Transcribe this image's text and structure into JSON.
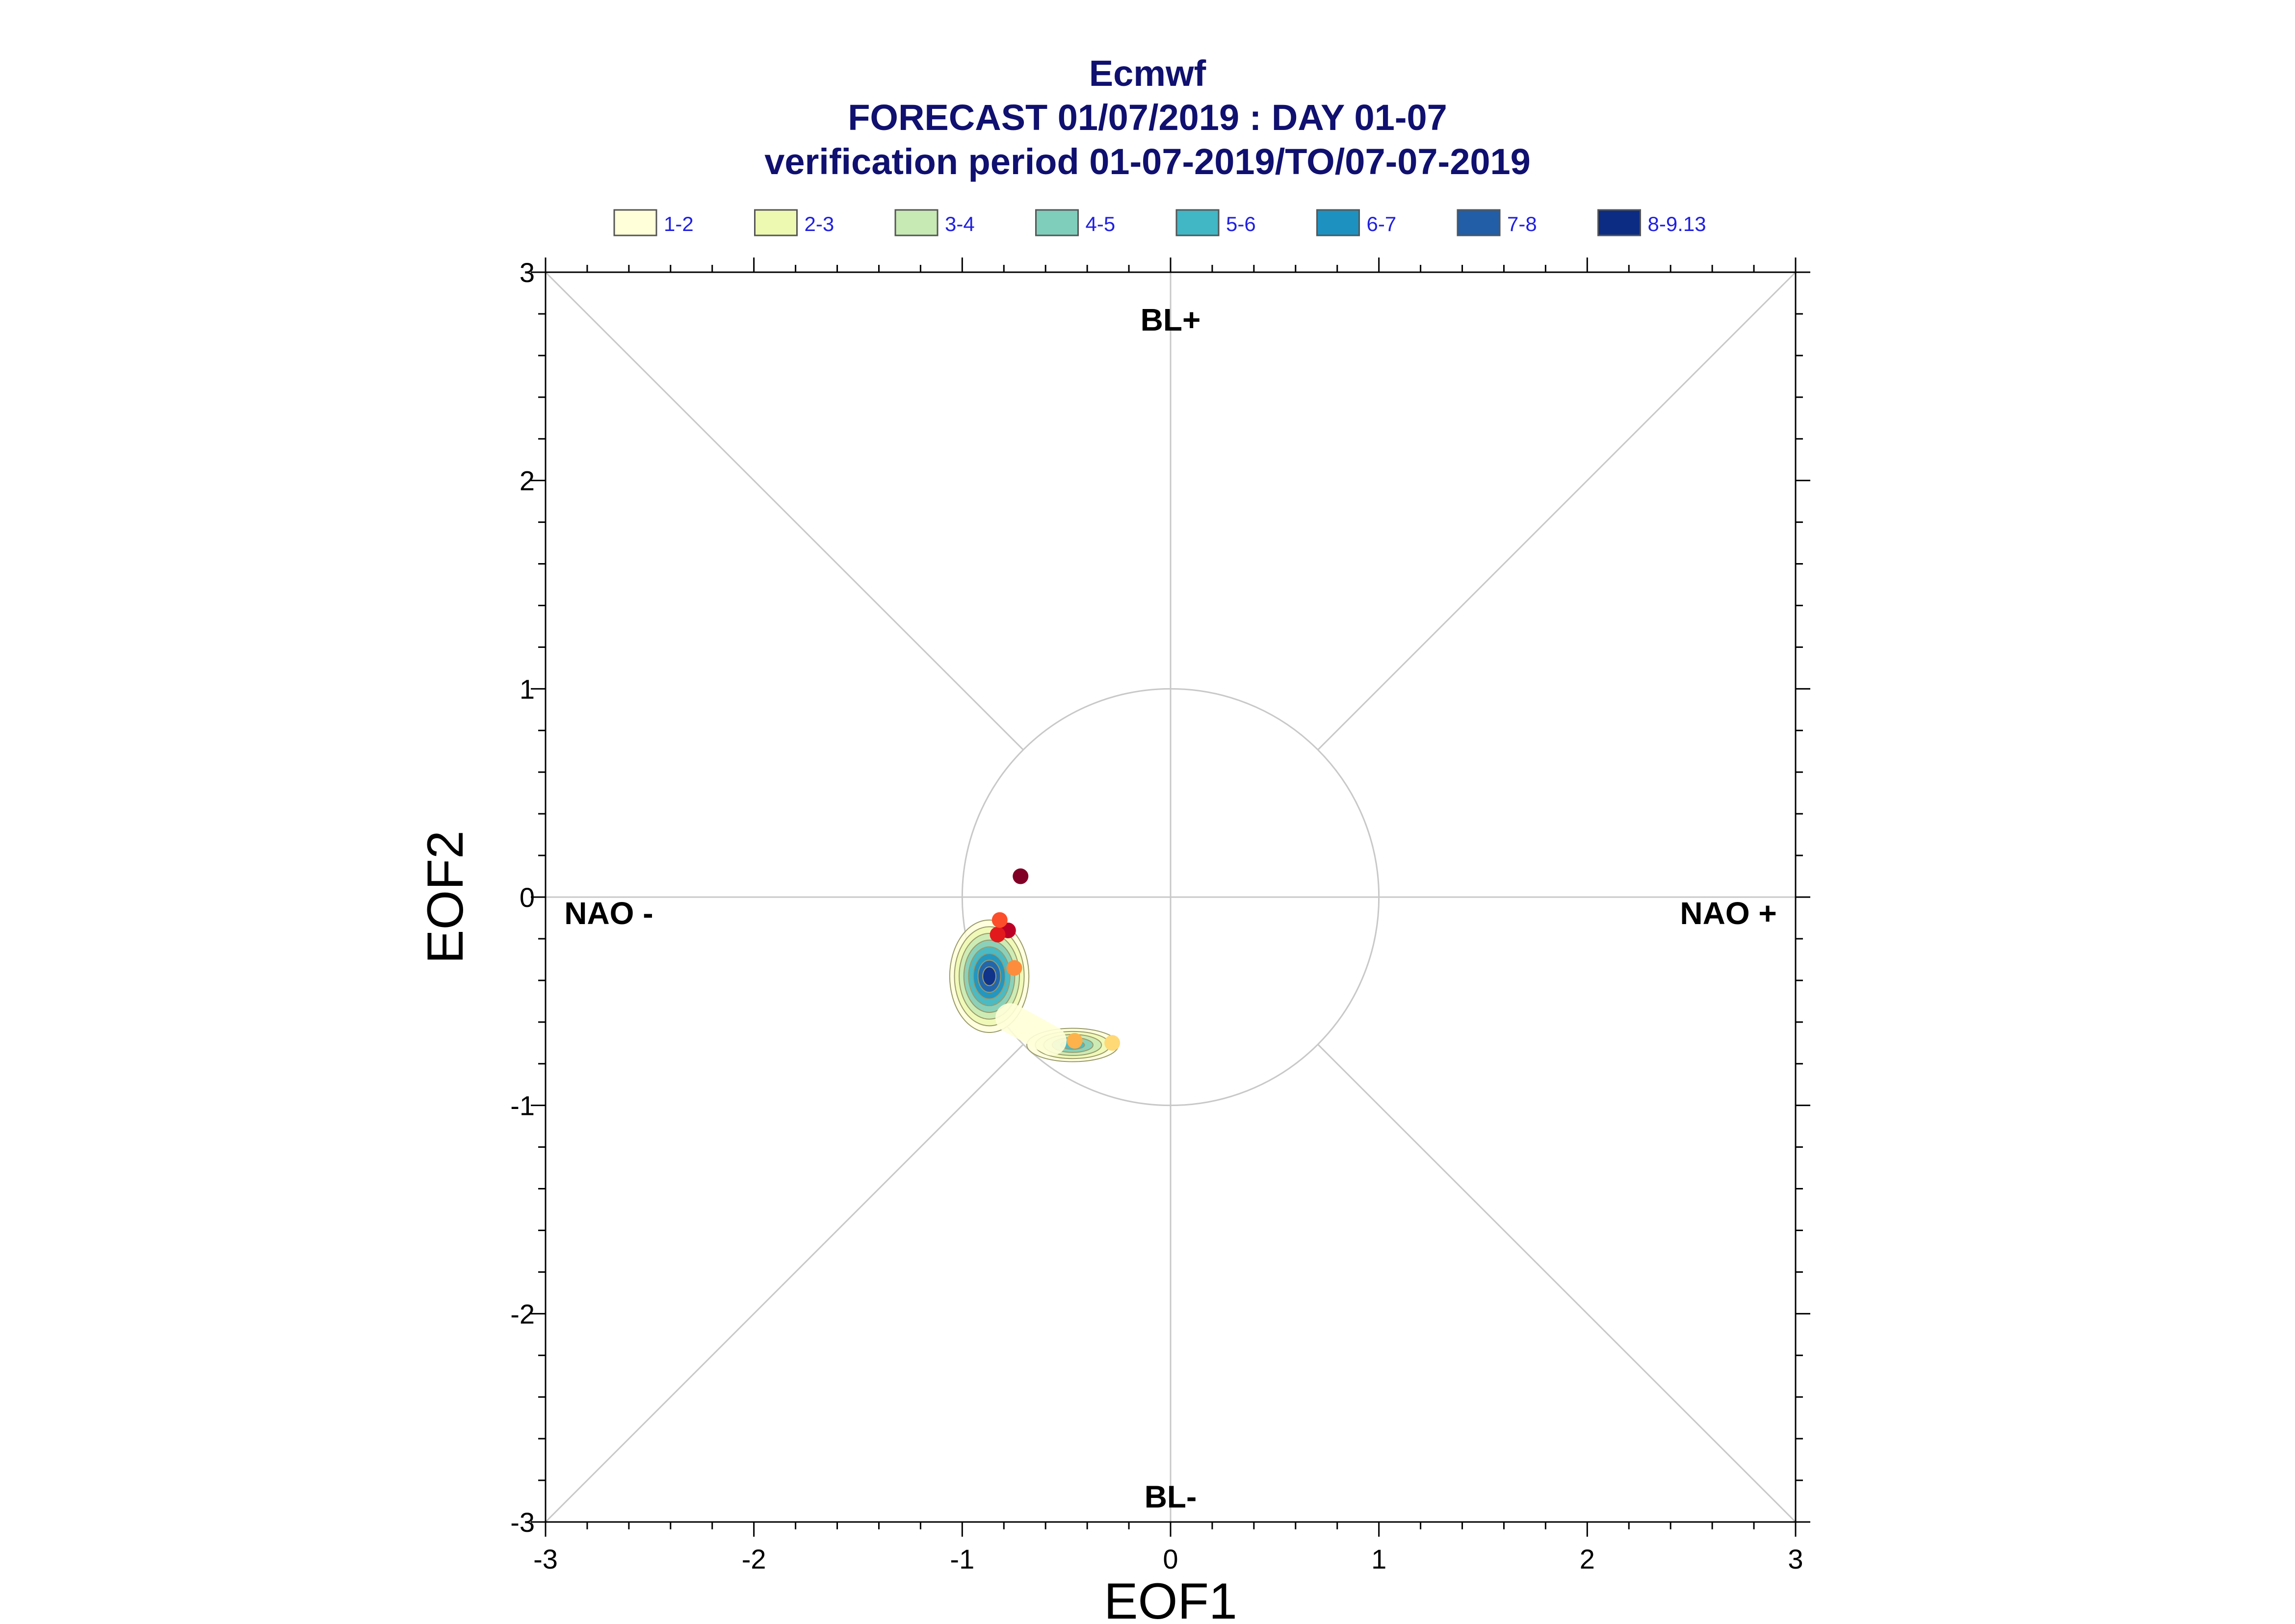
{
  "chart_data": {
    "type": "scatter",
    "title": [
      "Ecmwf",
      "FORECAST 01/07/2019 : DAY 01-07",
      "verification period 01-07-2019/TO/07-07-2019"
    ],
    "xlabel": "EOF1",
    "ylabel": "EOF2",
    "xlim": [
      -3,
      3
    ],
    "ylim": [
      -3,
      3
    ],
    "xticks": [
      "-3",
      "-2",
      "-1",
      "0",
      "1",
      "2",
      "3"
    ],
    "yticks": [
      "-3",
      "-2",
      "-1",
      "0",
      "1",
      "2",
      "3"
    ],
    "regime_labels": {
      "top": "BL+",
      "bottom": "BL-",
      "left": "NAO -",
      "right": "NAO +"
    },
    "unit_circle_radius": 1,
    "legend": [
      {
        "label": "1-2",
        "color": "#ffffd9"
      },
      {
        "label": "2-3",
        "color": "#edf8b1"
      },
      {
        "label": "3-4",
        "color": "#c7e9b4"
      },
      {
        "label": "4-5",
        "color": "#7fcdbb"
      },
      {
        "label": "5-6",
        "color": "#41b6c4"
      },
      {
        "label": "6-7",
        "color": "#1d91c0"
      },
      {
        "label": "7-8",
        "color": "#225ea8"
      },
      {
        "label": "8-9.13",
        "color": "#0c2c84"
      }
    ],
    "density_clusters": [
      {
        "cx": -0.87,
        "cy": -0.38,
        "rx": 0.19,
        "ry": 0.27,
        "levels": 8
      },
      {
        "cx": -0.47,
        "cy": -0.71,
        "rx": 0.22,
        "ry": 0.08,
        "levels": 5
      }
    ],
    "points": [
      {
        "day": 1,
        "x": -0.72,
        "y": 0.1,
        "color": "#800026"
      },
      {
        "day": 2,
        "x": -0.78,
        "y": -0.16,
        "color": "#bd0026"
      },
      {
        "day": 3,
        "x": -0.83,
        "y": -0.18,
        "color": "#e31a1c"
      },
      {
        "day": 4,
        "x": -0.82,
        "y": -0.11,
        "color": "#fc4e2a"
      },
      {
        "day": 5,
        "x": -0.75,
        "y": -0.34,
        "color": "#fd8d3c"
      },
      {
        "day": 6,
        "x": -0.46,
        "y": -0.69,
        "color": "#feb24c"
      },
      {
        "day": 7,
        "x": -0.28,
        "y": -0.7,
        "color": "#fed976"
      }
    ]
  }
}
